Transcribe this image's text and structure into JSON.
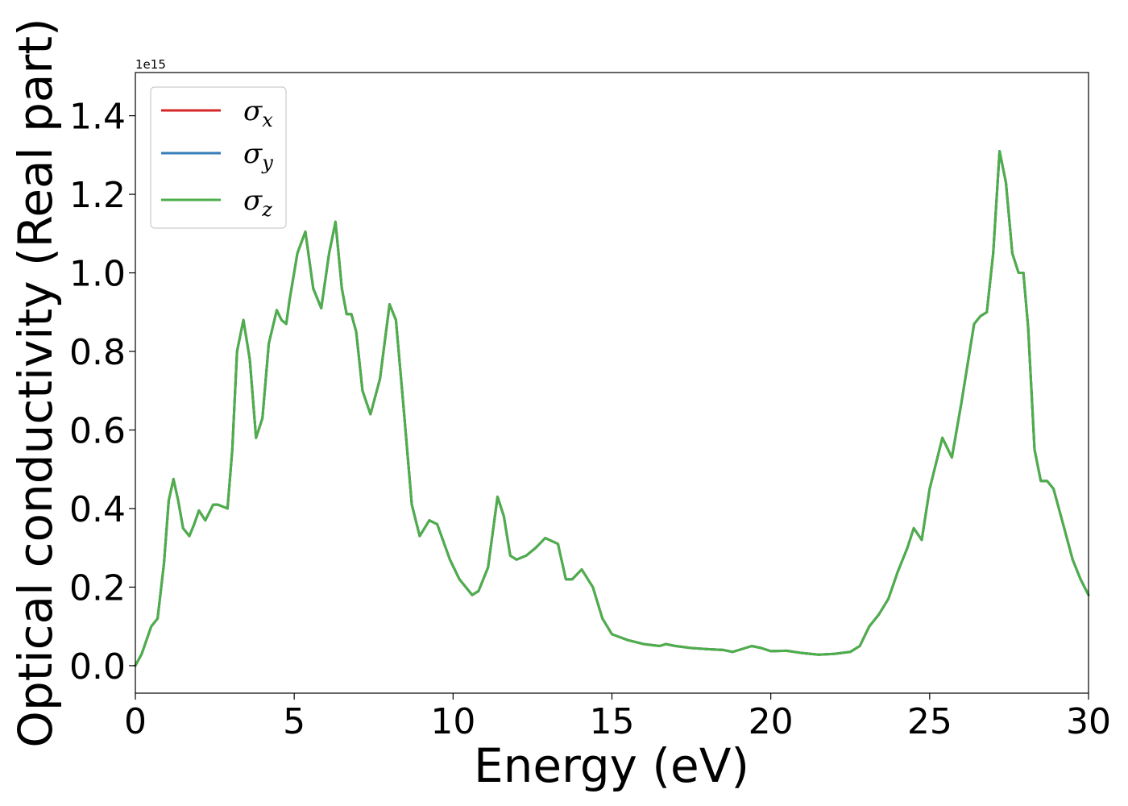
{
  "chart_data": {
    "type": "line",
    "title": "",
    "xlabel": "Energy (eV)",
    "ylabel": "Optical conductivity (Real part)",
    "y_offset_text": "1e15",
    "xlim": [
      0,
      30
    ],
    "ylim": [
      -0.07,
      1.51
    ],
    "xticks": [
      0,
      5,
      10,
      15,
      20,
      25,
      30
    ],
    "xtick_labels": [
      "0",
      "5",
      "10",
      "15",
      "20",
      "25",
      "30"
    ],
    "yticks": [
      0.0,
      0.2,
      0.4,
      0.6,
      0.8,
      1.0,
      1.2,
      1.4
    ],
    "ytick_labels": [
      "0.0",
      "0.2",
      "0.4",
      "0.6",
      "0.8",
      "1.0",
      "1.2",
      "1.4"
    ],
    "grid": false,
    "legend_position": "top-left",
    "x": [
      0,
      0.2,
      0.5,
      0.7,
      0.9,
      1.05,
      1.2,
      1.35,
      1.5,
      1.7,
      1.85,
      2.0,
      2.2,
      2.45,
      2.6,
      2.9,
      3.05,
      3.2,
      3.4,
      3.6,
      3.8,
      4.0,
      4.2,
      4.45,
      4.6,
      4.75,
      4.85,
      5.1,
      5.35,
      5.6,
      5.85,
      6.1,
      6.3,
      6.5,
      6.65,
      6.8,
      6.95,
      7.15,
      7.4,
      7.7,
      8.0,
      8.2,
      8.45,
      8.7,
      8.95,
      9.25,
      9.5,
      9.9,
      10.2,
      10.6,
      10.8,
      11.1,
      11.4,
      11.6,
      11.8,
      12.0,
      12.3,
      12.6,
      12.9,
      13.3,
      13.55,
      13.75,
      14.05,
      14.4,
      14.7,
      15.0,
      15.5,
      16.0,
      16.5,
      16.7,
      17.0,
      17.5,
      18.0,
      18.5,
      18.8,
      19.2,
      19.4,
      19.7,
      20.0,
      20.5,
      21.0,
      21.5,
      22.0,
      22.5,
      22.8,
      23.1,
      23.4,
      23.7,
      24.0,
      24.3,
      24.5,
      24.75,
      25.0,
      25.4,
      25.7,
      26.0,
      26.4,
      26.6,
      26.8,
      27.0,
      27.2,
      27.4,
      27.6,
      27.8,
      27.95,
      28.1,
      28.3,
      28.5,
      28.7,
      28.9,
      29.2,
      29.5,
      29.75,
      30.0
    ],
    "series": [
      {
        "name": "σx",
        "color": "#d62728",
        "values": [
          0.0,
          0.03,
          0.1,
          0.12,
          0.26,
          0.42,
          0.475,
          0.42,
          0.35,
          0.33,
          0.36,
          0.395,
          0.37,
          0.41,
          0.41,
          0.4,
          0.55,
          0.8,
          0.88,
          0.78,
          0.58,
          0.63,
          0.82,
          0.905,
          0.88,
          0.87,
          0.93,
          1.05,
          1.105,
          0.96,
          0.91,
          1.05,
          1.13,
          0.96,
          0.895,
          0.895,
          0.85,
          0.7,
          0.64,
          0.73,
          0.92,
          0.88,
          0.65,
          0.41,
          0.33,
          0.37,
          0.36,
          0.27,
          0.22,
          0.18,
          0.19,
          0.25,
          0.43,
          0.38,
          0.28,
          0.27,
          0.28,
          0.3,
          0.325,
          0.31,
          0.22,
          0.22,
          0.245,
          0.2,
          0.12,
          0.08,
          0.065,
          0.055,
          0.05,
          0.055,
          0.05,
          0.045,
          0.042,
          0.04,
          0.035,
          0.045,
          0.05,
          0.045,
          0.037,
          0.038,
          0.032,
          0.028,
          0.03,
          0.035,
          0.05,
          0.1,
          0.13,
          0.17,
          0.24,
          0.3,
          0.35,
          0.32,
          0.45,
          0.58,
          0.53,
          0.67,
          0.87,
          0.89,
          0.9,
          1.05,
          1.31,
          1.23,
          1.05,
          1.0,
          1.0,
          0.86,
          0.55,
          0.47,
          0.47,
          0.45,
          0.36,
          0.27,
          0.22,
          0.18
        ]
      },
      {
        "name": "σy",
        "color": "#377eb8",
        "values": [
          0.0,
          0.03,
          0.1,
          0.12,
          0.26,
          0.42,
          0.475,
          0.42,
          0.35,
          0.33,
          0.36,
          0.395,
          0.37,
          0.41,
          0.41,
          0.4,
          0.55,
          0.8,
          0.88,
          0.78,
          0.58,
          0.63,
          0.82,
          0.905,
          0.88,
          0.87,
          0.93,
          1.05,
          1.105,
          0.96,
          0.91,
          1.05,
          1.13,
          0.96,
          0.895,
          0.895,
          0.85,
          0.7,
          0.64,
          0.73,
          0.92,
          0.88,
          0.65,
          0.41,
          0.33,
          0.37,
          0.36,
          0.27,
          0.22,
          0.18,
          0.19,
          0.25,
          0.43,
          0.38,
          0.28,
          0.27,
          0.28,
          0.3,
          0.325,
          0.31,
          0.22,
          0.22,
          0.245,
          0.2,
          0.12,
          0.08,
          0.065,
          0.055,
          0.05,
          0.055,
          0.05,
          0.045,
          0.042,
          0.04,
          0.035,
          0.045,
          0.05,
          0.045,
          0.037,
          0.038,
          0.032,
          0.028,
          0.03,
          0.035,
          0.05,
          0.1,
          0.13,
          0.17,
          0.24,
          0.3,
          0.35,
          0.32,
          0.45,
          0.58,
          0.53,
          0.67,
          0.87,
          0.89,
          0.9,
          1.05,
          1.31,
          1.23,
          1.05,
          1.0,
          1.0,
          0.86,
          0.55,
          0.47,
          0.47,
          0.45,
          0.36,
          0.27,
          0.22,
          0.18
        ]
      },
      {
        "name": "σz",
        "color": "#4daf4a",
        "values": [
          0.0,
          0.03,
          0.1,
          0.12,
          0.26,
          0.42,
          0.475,
          0.42,
          0.35,
          0.33,
          0.36,
          0.395,
          0.37,
          0.41,
          0.41,
          0.4,
          0.55,
          0.8,
          0.88,
          0.78,
          0.58,
          0.63,
          0.82,
          0.905,
          0.88,
          0.87,
          0.93,
          1.05,
          1.105,
          0.96,
          0.91,
          1.05,
          1.13,
          0.96,
          0.895,
          0.895,
          0.85,
          0.7,
          0.64,
          0.73,
          0.92,
          0.88,
          0.65,
          0.41,
          0.33,
          0.37,
          0.36,
          0.27,
          0.22,
          0.18,
          0.19,
          0.25,
          0.43,
          0.38,
          0.28,
          0.27,
          0.28,
          0.3,
          0.325,
          0.31,
          0.22,
          0.22,
          0.245,
          0.2,
          0.12,
          0.08,
          0.065,
          0.055,
          0.05,
          0.055,
          0.05,
          0.045,
          0.042,
          0.04,
          0.035,
          0.045,
          0.05,
          0.045,
          0.037,
          0.038,
          0.032,
          0.028,
          0.03,
          0.035,
          0.05,
          0.1,
          0.13,
          0.17,
          0.24,
          0.3,
          0.35,
          0.32,
          0.45,
          0.58,
          0.53,
          0.67,
          0.87,
          0.89,
          0.9,
          1.05,
          1.31,
          1.23,
          1.05,
          1.0,
          1.0,
          0.86,
          0.55,
          0.47,
          0.47,
          0.45,
          0.36,
          0.27,
          0.22,
          0.18
        ]
      }
    ],
    "legend": [
      {
        "symbol": "σ",
        "subscript": "x",
        "color": "#d62728"
      },
      {
        "symbol": "σ",
        "subscript": "y",
        "color": "#377eb8"
      },
      {
        "symbol": "σ",
        "subscript": "z",
        "color": "#4daf4a"
      }
    ]
  }
}
